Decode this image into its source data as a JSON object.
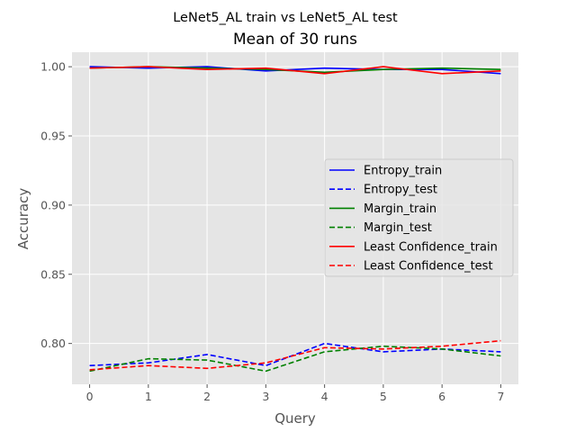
{
  "chart_data": {
    "type": "line",
    "suptitle": "LeNet5_AL train vs LeNet5_AL test",
    "title": "Mean of 30 runs",
    "xlabel": "Query",
    "ylabel": "Accuracy",
    "x": [
      0,
      1,
      2,
      3,
      4,
      5,
      6,
      7
    ],
    "xticks": [
      "0",
      "1",
      "2",
      "3",
      "4",
      "5",
      "6",
      "7"
    ],
    "yticks": [
      "0.80",
      "0.85",
      "0.90",
      "0.95",
      "1.00"
    ],
    "ytick_values": [
      0.8,
      0.85,
      0.9,
      0.95,
      1.0
    ],
    "xlim": [
      -0.3,
      7.3
    ],
    "ylim": [
      0.7705,
      1.0105
    ],
    "grid": true,
    "legend_position": "center-right",
    "series": [
      {
        "name": "Entropy_train",
        "color": "#0000ff",
        "style": "solid",
        "values": [
          1.0,
          0.999,
          1.0,
          0.997,
          0.999,
          0.998,
          0.998,
          0.995
        ]
      },
      {
        "name": "Entropy_test",
        "color": "#0000ff",
        "style": "dashed",
        "values": [
          0.784,
          0.786,
          0.792,
          0.784,
          0.8,
          0.794,
          0.796,
          0.794
        ]
      },
      {
        "name": "Margin_train",
        "color": "#008000",
        "style": "solid",
        "values": [
          0.999,
          1.0,
          0.999,
          0.998,
          0.996,
          0.998,
          0.999,
          0.998
        ]
      },
      {
        "name": "Margin_test",
        "color": "#008000",
        "style": "dashed",
        "values": [
          0.78,
          0.789,
          0.788,
          0.78,
          0.794,
          0.798,
          0.796,
          0.791
        ]
      },
      {
        "name": "Least Confidence_train",
        "color": "#ff0000",
        "style": "solid",
        "values": [
          0.999,
          1.0,
          0.998,
          0.999,
          0.995,
          1.0,
          0.995,
          0.997
        ]
      },
      {
        "name": "Least Confidence_test",
        "color": "#ff0000",
        "style": "dashed",
        "values": [
          0.781,
          0.784,
          0.782,
          0.786,
          0.797,
          0.796,
          0.798,
          0.802
        ]
      }
    ]
  }
}
